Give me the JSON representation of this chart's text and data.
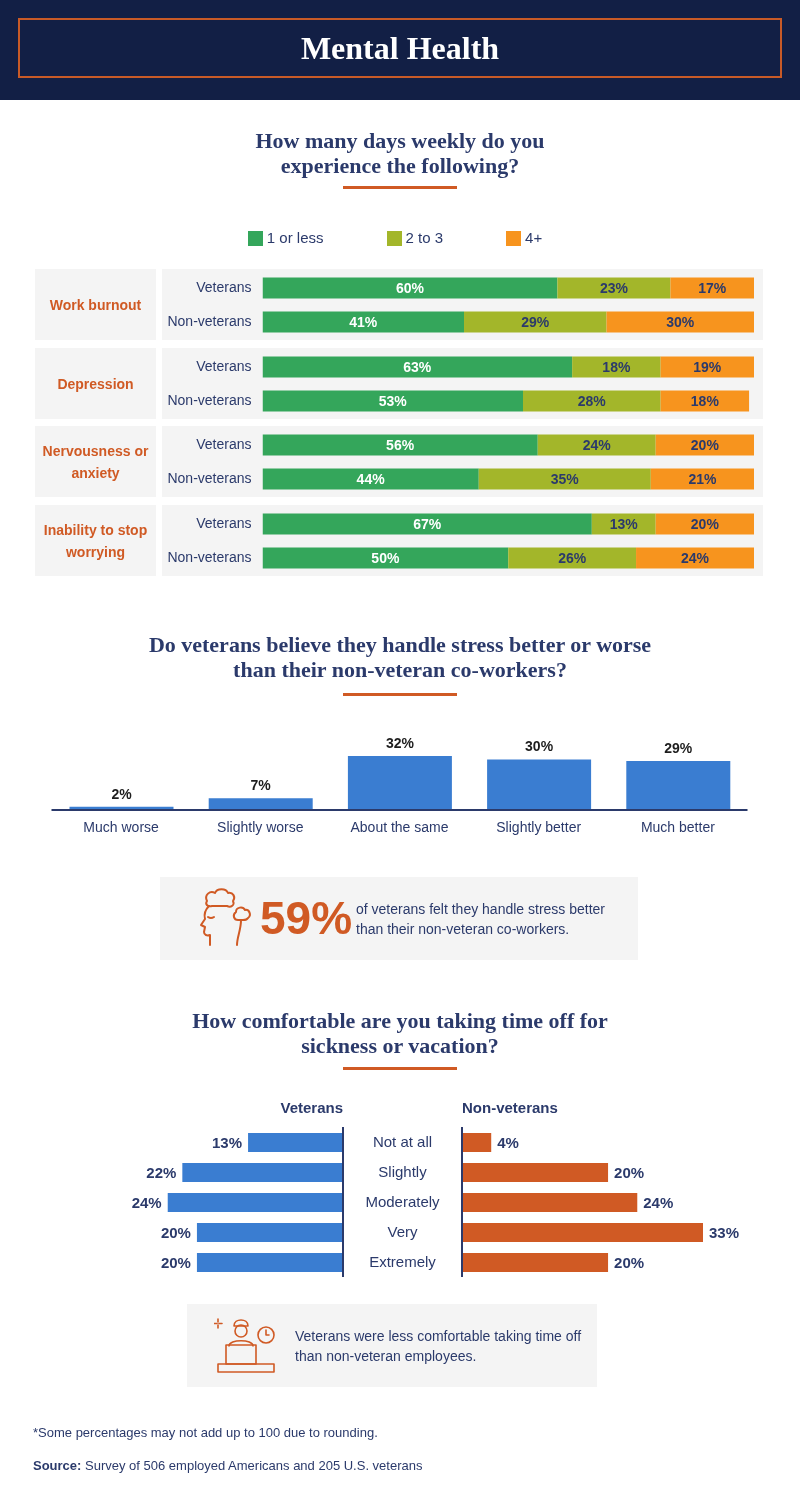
{
  "chart_data": [
    {
      "type": "bar",
      "orientation": "horizontal",
      "stacked": true,
      "title": "Mental Health",
      "subtitle": "How many days weekly do you experience the following?",
      "ylabel": "Work burnout",
      "categories": [
        "Veterans",
        "Non-veterans"
      ],
      "series": [
        {
          "name": "1 or less",
          "color": "#34a65b",
          "values": [
            60,
            41
          ],
          "value_labels": [
            "60%",
            "41%"
          ]
        },
        {
          "name": "2 to 3",
          "color": "#a3b62a",
          "values": [
            23,
            29
          ],
          "value_labels": [
            "23%",
            "29%"
          ]
        },
        {
          "name": "4+",
          "color": "#f7941e",
          "values": [
            17,
            30
          ],
          "value_labels": [
            "17%",
            "30%"
          ]
        }
      ],
      "legend": "top",
      "tick_labels": "y"
    },
    {
      "type": "bar",
      "orientation": "horizontal",
      "stacked": true,
      "ylabel": "Depression",
      "categories": [
        "Veterans",
        "Non-veterans"
      ],
      "series": [
        {
          "color": "#34a65b",
          "values": [
            63,
            53
          ],
          "value_labels": [
            "63%",
            "53%"
          ]
        },
        {
          "color": "#a3b62a",
          "values": [
            18,
            28
          ],
          "value_labels": [
            "18%",
            "28%"
          ]
        },
        {
          "color": "#f7941e",
          "values": [
            19,
            18
          ],
          "value_labels": [
            "19%",
            "18%"
          ]
        }
      ],
      "tick_labels": "y"
    },
    {
      "type": "bar",
      "orientation": "horizontal",
      "stacked": true,
      "ylabel": "Nervousness or anxiety",
      "categories": [
        "Veterans",
        "Non-veterans"
      ],
      "series": [
        {
          "color": "#34a65b",
          "values": [
            56,
            44
          ],
          "value_labels": [
            "56%",
            "44%"
          ]
        },
        {
          "color": "#a3b62a",
          "values": [
            24,
            35
          ],
          "value_labels": [
            "24%",
            "35%"
          ]
        },
        {
          "color": "#f7941e",
          "values": [
            20,
            21
          ],
          "value_labels": [
            "20%",
            "21%"
          ]
        }
      ],
      "tick_labels": "y"
    },
    {
      "type": "bar",
      "orientation": "horizontal",
      "stacked": true,
      "ylabel": "Inability to stop worrying",
      "categories": [
        "Veterans",
        "Non-veterans"
      ],
      "series": [
        {
          "color": "#34a65b",
          "values": [
            67,
            50
          ],
          "value_labels": [
            "67%",
            "50%"
          ]
        },
        {
          "color": "#a3b62a",
          "values": [
            13,
            26
          ],
          "value_labels": [
            "13%",
            "26%"
          ]
        },
        {
          "color": "#f7941e",
          "values": [
            20,
            24
          ],
          "value_labels": [
            "20%",
            "24%"
          ]
        }
      ],
      "tick_labels": "y"
    },
    {
      "type": "bar",
      "title": "Do veterans believe they handle stress better or worse than their non-veteran co-workers?",
      "categories": [
        "Much worse",
        "Slightly worse",
        "About the same",
        "Slightly better",
        "Much better"
      ],
      "values": [
        2,
        7,
        32,
        30,
        29
      ],
      "value_labels": [
        "2%",
        "7%",
        "32%",
        "30%",
        "29%"
      ],
      "color": "#3a7dd1",
      "tick_labels": "x"
    },
    {
      "type": "other",
      "annotations": [
        "59%",
        "of veterans felt they handle stress better than their non-veteran co-workers."
      ]
    },
    {
      "type": "bar",
      "orientation": "horizontal",
      "title": "How comfortable are you taking time off for sickness or vacation?",
      "categories": [
        "Not at all",
        "Slightly",
        "Moderately",
        "Very",
        "Extremely"
      ],
      "series": [
        {
          "name": "Veterans",
          "color": "#3a7dd1",
          "values": [
            13,
            22,
            24,
            20,
            20
          ],
          "value_labels": [
            "13%",
            "22%",
            "24%",
            "20%",
            "20%"
          ]
        }
      ],
      "tick_labels": false
    },
    {
      "type": "bar",
      "orientation": "horizontal",
      "categories": [
        "Not at all",
        "Slightly",
        "Moderately",
        "Very",
        "Extremely"
      ],
      "series": [
        {
          "name": "Non-veterans",
          "color": "#d05a24",
          "values": [
            4,
            20,
            24,
            33,
            20
          ],
          "value_labels": [
            "4%",
            "20%",
            "24%",
            "33%",
            "20%"
          ]
        }
      ],
      "tick_labels": "y"
    },
    {
      "type": "other",
      "annotations": [
        "Veterans were less comfortable taking time off than non-veteran employees."
      ]
    },
    {
      "type": "other",
      "annotations": [
        "*Some percentages may not add up to 100 due to rounding.",
        "Source: Survey of 506 employed Americans and 205 U.S. veterans"
      ]
    }
  ]
}
